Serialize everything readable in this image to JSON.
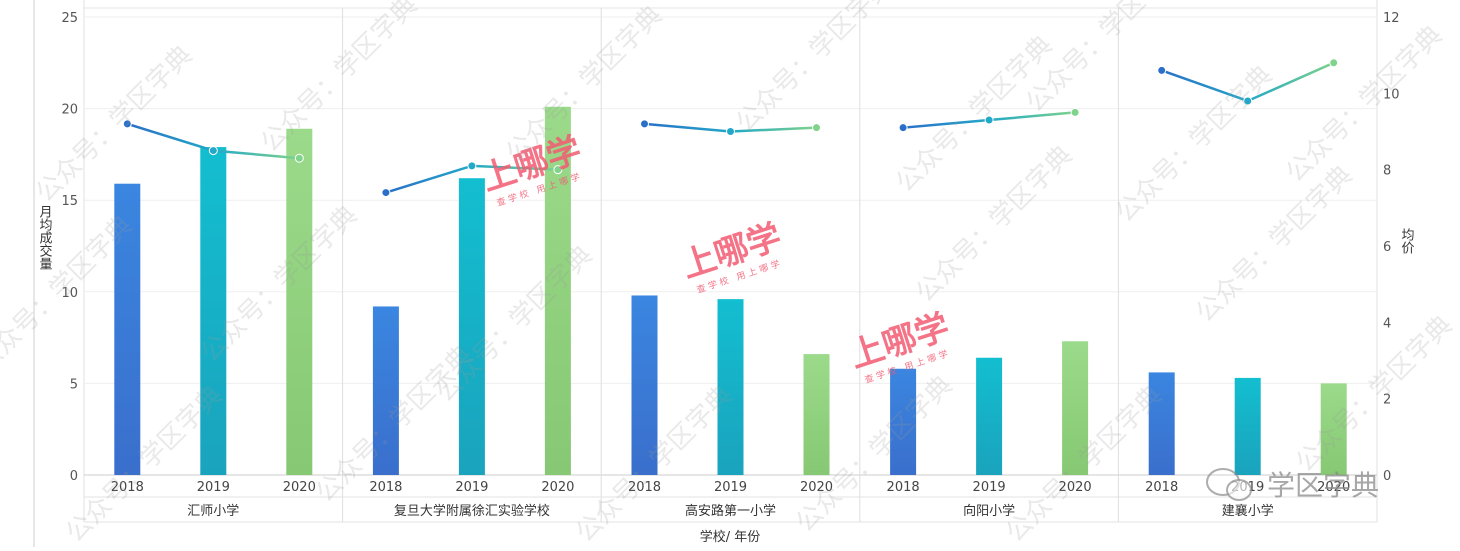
{
  "chart_data": {
    "type": "bar+line",
    "title": "",
    "ylabel_left": "月均成交量",
    "ylabel_right": "均价",
    "xlabel": "学校/ 年份",
    "ylim_left": [
      0,
      25
    ],
    "yticks_left": [
      0,
      5,
      10,
      15,
      20,
      25
    ],
    "ylim_right": [
      0,
      12
    ],
    "yticks_right": [
      0,
      2,
      4,
      6,
      8,
      10,
      12
    ],
    "grid": true,
    "years": [
      "2018",
      "2019",
      "2020"
    ],
    "schools": [
      {
        "name": "汇师小学",
        "volume": [
          15.9,
          17.9,
          18.9
        ],
        "price": [
          9.2,
          8.5,
          8.3
        ]
      },
      {
        "name": "复旦大学附属徐汇实验学校",
        "volume": [
          9.2,
          16.2,
          20.1
        ],
        "price": [
          7.4,
          8.1,
          8.0
        ]
      },
      {
        "name": "高安路第一小学",
        "volume": [
          9.8,
          9.6,
          6.6
        ],
        "price": [
          9.2,
          9.0,
          9.1
        ]
      },
      {
        "name": "向阳小学",
        "volume": [
          5.8,
          6.4,
          7.3
        ],
        "price": [
          9.1,
          9.3,
          9.5
        ]
      },
      {
        "name": "建襄小学",
        "volume": [
          5.6,
          5.3,
          5.0
        ],
        "price": [
          10.6,
          9.8,
          10.8
        ]
      }
    ],
    "colors": {
      "2018": "#3c7fd8",
      "2019": "#12b1c6",
      "2020": "#8fd17e",
      "line": "#2a8fc8"
    }
  },
  "watermarks": {
    "brand_main": "上哪学",
    "brand_sub": "查学校 用上哪学",
    "account_text": "公众号：学区字典",
    "logo_text": "学区字典"
  }
}
